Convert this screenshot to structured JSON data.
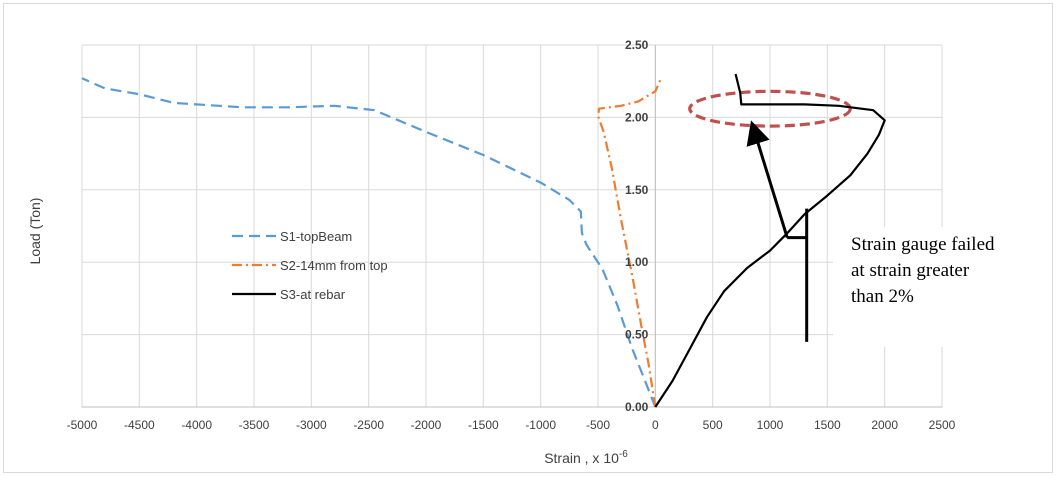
{
  "chart_data": {
    "type": "line",
    "title": "",
    "xlabel": "Strain , x 10",
    "xlabel_superscript": "-6",
    "ylabel": "Load (Ton)",
    "xlim": [
      -5000,
      2500
    ],
    "ylim": [
      0,
      2.5
    ],
    "x_ticks": [
      "-5000",
      "-4500",
      "-4000",
      "-3500",
      "-3000",
      "-2500",
      "-2000",
      "-1500",
      "-1000",
      "-500",
      "0",
      "500",
      "1000",
      "1500",
      "2000",
      "2500"
    ],
    "y_ticks": [
      "0.00",
      "0.50",
      "1.00",
      "1.50",
      "2.00",
      "2.50"
    ],
    "grid": true,
    "legend_position": "center-left",
    "series": [
      {
        "name": "S1-topBeam",
        "color": "#5b9bd5",
        "dash": "dash",
        "points": [
          [
            0,
            0
          ],
          [
            -100,
            0.2
          ],
          [
            -200,
            0.4
          ],
          [
            -330,
            0.7
          ],
          [
            -460,
            0.95
          ],
          [
            -600,
            1.12
          ],
          [
            -640,
            1.2
          ],
          [
            -650,
            1.35
          ],
          [
            -750,
            1.43
          ],
          [
            -1000,
            1.55
          ],
          [
            -1500,
            1.74
          ],
          [
            -2000,
            1.9
          ],
          [
            -2450,
            2.05
          ],
          [
            -2800,
            2.08
          ],
          [
            -3200,
            2.07
          ],
          [
            -3600,
            2.07
          ],
          [
            -4000,
            2.09
          ],
          [
            -4200,
            2.1
          ],
          [
            -4500,
            2.16
          ],
          [
            -4800,
            2.2
          ],
          [
            -5000,
            2.27
          ]
        ]
      },
      {
        "name": "S2-14mm from top",
        "color": "#ed7d31",
        "dash": "dashdot",
        "points": [
          [
            0,
            0
          ],
          [
            -60,
            0.3
          ],
          [
            -120,
            0.55
          ],
          [
            -200,
            0.9
          ],
          [
            -300,
            1.3
          ],
          [
            -380,
            1.65
          ],
          [
            -450,
            1.9
          ],
          [
            -500,
            2.01
          ],
          [
            -490,
            2.06
          ],
          [
            -400,
            2.07
          ],
          [
            -300,
            2.08
          ],
          [
            -150,
            2.11
          ],
          [
            0,
            2.18
          ],
          [
            50,
            2.27
          ]
        ]
      },
      {
        "name": "S3-at rebar",
        "color": "#000000",
        "dash": "solid",
        "points": [
          [
            0,
            0
          ],
          [
            150,
            0.18
          ],
          [
            300,
            0.4
          ],
          [
            450,
            0.62
          ],
          [
            600,
            0.8
          ],
          [
            800,
            0.96
          ],
          [
            1000,
            1.08
          ],
          [
            1150,
            1.2
          ],
          [
            1300,
            1.33
          ],
          [
            1500,
            1.46
          ],
          [
            1700,
            1.6
          ],
          [
            1850,
            1.75
          ],
          [
            1950,
            1.88
          ],
          [
            2000,
            1.98
          ],
          [
            1900,
            2.05
          ],
          [
            1600,
            2.08
          ],
          [
            1300,
            2.09
          ],
          [
            1000,
            2.09
          ],
          [
            750,
            2.09
          ],
          [
            740,
            2.17
          ],
          [
            700,
            2.3
          ]
        ]
      }
    ],
    "annotations": [
      {
        "id": "failure-ellipse",
        "kind": "ellipse",
        "cx": 1000,
        "cy": 2.06,
        "rx": 700,
        "ry": 0.12,
        "color": "#c0504d"
      },
      {
        "id": "pointer-arrow",
        "kind": "arrow",
        "from": [
          1150,
          1.17
        ],
        "to": [
          850,
          1.94
        ]
      },
      {
        "id": "bracket-stem",
        "kind": "line",
        "from": [
          1150,
          1.17
        ],
        "to": [
          1320,
          1.17
        ]
      },
      {
        "id": "bracket-bar",
        "kind": "line",
        "from": [
          1320,
          0.45
        ],
        "to": [
          1320,
          1.37
        ]
      }
    ]
  },
  "annotation_text": "Strain gauge failed\nat strain greater\nthan 2%"
}
